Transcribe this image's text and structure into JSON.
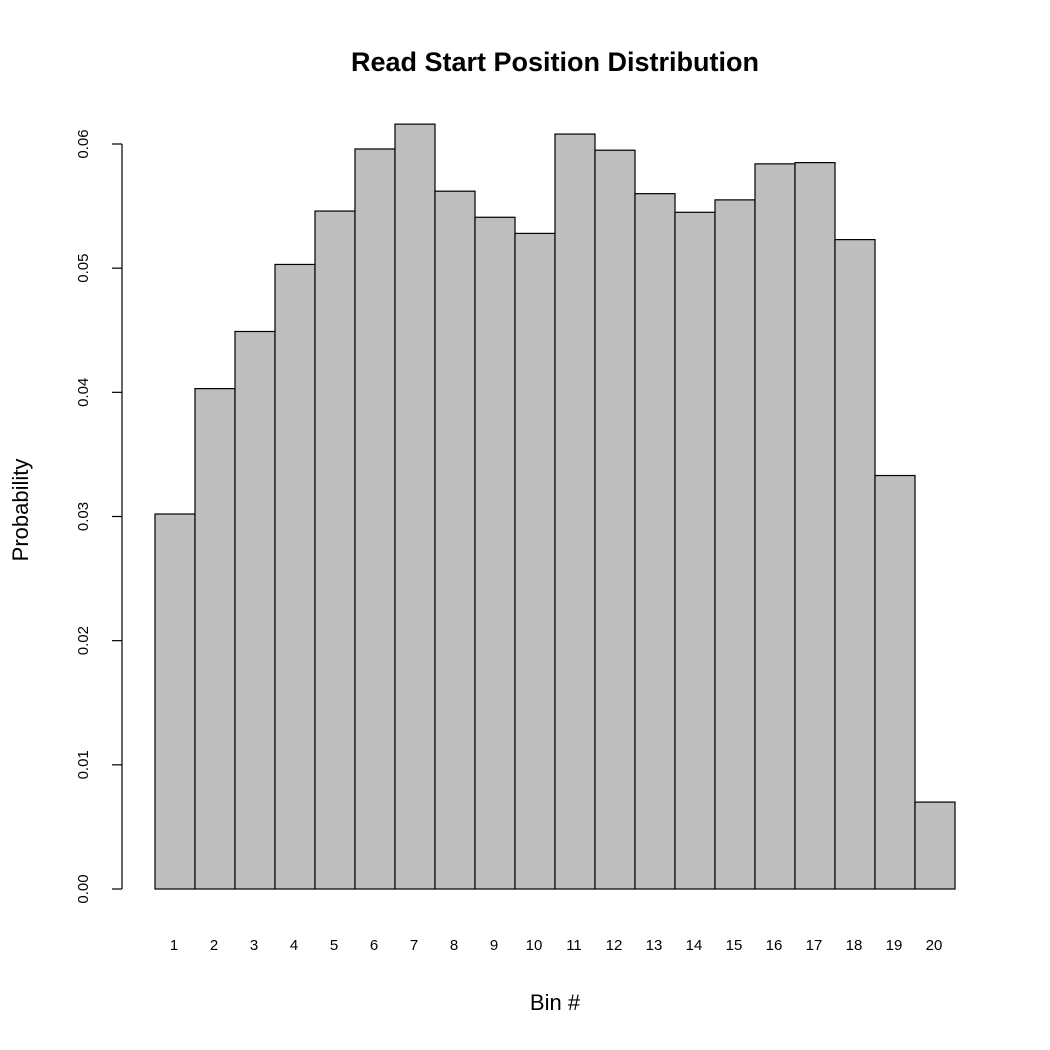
{
  "chart_data": {
    "type": "bar",
    "title": "Read Start Position Distribution",
    "xlabel": "Bin #",
    "ylabel": "Probability",
    "categories": [
      "1",
      "2",
      "3",
      "4",
      "5",
      "6",
      "7",
      "8",
      "9",
      "10",
      "11",
      "12",
      "13",
      "14",
      "15",
      "16",
      "17",
      "18",
      "19",
      "20"
    ],
    "values": [
      0.0302,
      0.0403,
      0.0449,
      0.0503,
      0.0546,
      0.0596,
      0.0616,
      0.0562,
      0.0541,
      0.0528,
      0.0608,
      0.0595,
      0.056,
      0.0545,
      0.0555,
      0.0584,
      0.0585,
      0.0523,
      0.0333,
      0.007
    ],
    "ylim": [
      0,
      0.06
    ],
    "yticks": [
      "0.00",
      "0.01",
      "0.02",
      "0.03",
      "0.04",
      "0.05",
      "0.06"
    ],
    "bar_color": "#bebebe",
    "grid": false,
    "legend": "none"
  }
}
